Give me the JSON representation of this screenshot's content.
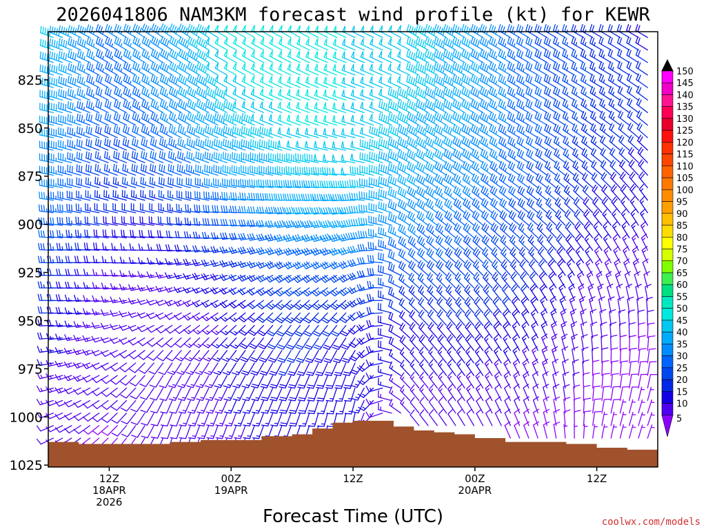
{
  "chart_data": {
    "type": "wind-barb-profile",
    "title": "2026041806 NAM3KM forecast wind profile (kt) for KEWR",
    "xlabel": "Forecast Time (UTC)",
    "ylabel": "",
    "credit": "coolwx.com/models",
    "y_ticks": [
      "825",
      "850",
      "875",
      "900",
      "925",
      "950",
      "975",
      "1000",
      "1025"
    ],
    "y_range_hpa": [
      800,
      1026
    ],
    "x_ticks": [
      {
        "label": "12Z",
        "sub": "18APR",
        "sub2": "2026",
        "hour": 6
      },
      {
        "label": "00Z",
        "sub": "19APR",
        "sub2": "",
        "hour": 18
      },
      {
        "label": "12Z",
        "sub": "",
        "sub2": "",
        "hour": 30
      },
      {
        "label": "00Z",
        "sub": "20APR",
        "sub2": "",
        "hour": 42
      },
      {
        "label": "12Z",
        "sub": "",
        "sub2": "",
        "hour": 54
      }
    ],
    "x_range_hours": [
      0,
      60
    ],
    "colorbar": {
      "labels": [
        "150",
        "145",
        "140",
        "135",
        "130",
        "125",
        "120",
        "115",
        "110",
        "105",
        "100",
        "95",
        "90",
        "85",
        "80",
        "75",
        "70",
        "65",
        "60",
        "55",
        "50",
        "45",
        "40",
        "35",
        "30",
        "25",
        "20",
        "15",
        "10",
        "5"
      ],
      "colors": [
        "#ff00ff",
        "#f000c8",
        "#ff1493",
        "#ff0055",
        "#e8002a",
        "#ff1010",
        "#ff3200",
        "#ff4600",
        "#ff6400",
        "#ff7800",
        "#ff8c00",
        "#ffa000",
        "#ffbe00",
        "#ffdc00",
        "#ffff00",
        "#d4ff00",
        "#80ff00",
        "#3cf050",
        "#00e080",
        "#00e8c0",
        "#00e8e0",
        "#00c8f0",
        "#00aaff",
        "#008cff",
        "#0064ff",
        "#0046f0",
        "#0028e6",
        "#1400e6",
        "#5000f0",
        "#8c00ff"
      ],
      "top_arrow_color": "#000000"
    },
    "terrain": {
      "color": "#a0522d",
      "hours": [
        0,
        3,
        6,
        9,
        12,
        15,
        18,
        21,
        24,
        26,
        28,
        30,
        32,
        34,
        36,
        38,
        40,
        42,
        45,
        48,
        51,
        54,
        57,
        60
      ],
      "pressure": [
        1013,
        1014,
        1014,
        1014,
        1013,
        1012,
        1012,
        1010,
        1009,
        1006,
        1003,
        1002,
        1002,
        1005,
        1007,
        1008,
        1009,
        1011,
        1013,
        1013,
        1014,
        1016,
        1017,
        1015
      ]
    },
    "wind_profile": {
      "levels_hpa": [
        1025,
        1000,
        975,
        950,
        925,
        900,
        875,
        850,
        825,
        800
      ],
      "hours": [
        0,
        6,
        12,
        18,
        24,
        30,
        36,
        42,
        48,
        54,
        60
      ],
      "speed_kt": [
        [
          10,
          12,
          15,
          20,
          25,
          35,
          40,
          42,
          45,
          48
        ],
        [
          8,
          10,
          12,
          12,
          15,
          20,
          25,
          30,
          32,
          35
        ],
        [
          10,
          12,
          12,
          10,
          15,
          20,
          30,
          35,
          38,
          40
        ],
        [
          12,
          14,
          16,
          15,
          20,
          30,
          40,
          45,
          50,
          52
        ],
        [
          15,
          18,
          20,
          22,
          28,
          38,
          45,
          50,
          52,
          52
        ],
        [
          12,
          15,
          18,
          20,
          30,
          42,
          48,
          50,
          50,
          50
        ],
        [
          10,
          12,
          16,
          20,
          30,
          38,
          42,
          45,
          48,
          48
        ],
        [
          8,
          12,
          16,
          22,
          28,
          32,
          38,
          40,
          42,
          40
        ],
        [
          6,
          10,
          14,
          18,
          22,
          28,
          30,
          32,
          32,
          30
        ],
        [
          5,
          8,
          10,
          12,
          14,
          18,
          22,
          24,
          25,
          22
        ],
        [
          5,
          6,
          8,
          10,
          12,
          15,
          18,
          20,
          20,
          18
        ]
      ],
      "dir_deg": [
        [
          240,
          250,
          260,
          270,
          270,
          275,
          280,
          280,
          285,
          290
        ],
        [
          220,
          230,
          240,
          260,
          270,
          280,
          290,
          295,
          300,
          300
        ],
        [
          200,
          200,
          210,
          240,
          260,
          280,
          290,
          300,
          300,
          305
        ],
        [
          200,
          200,
          210,
          230,
          250,
          270,
          285,
          295,
          300,
          300
        ],
        [
          200,
          200,
          205,
          220,
          240,
          260,
          280,
          290,
          295,
          300
        ],
        [
          190,
          190,
          200,
          220,
          240,
          260,
          275,
          285,
          290,
          295
        ],
        [
          320,
          320,
          320,
          315,
          310,
          305,
          300,
          300,
          295,
          300
        ],
        [
          330,
          330,
          325,
          320,
          315,
          310,
          305,
          300,
          300,
          300
        ],
        [
          340,
          340,
          335,
          330,
          320,
          310,
          305,
          300,
          300,
          300
        ],
        [
          10,
          10,
          360,
          350,
          330,
          320,
          310,
          305,
          300,
          300
        ],
        [
          20,
          20,
          10,
          360,
          340,
          330,
          320,
          310,
          305,
          300
        ]
      ]
    }
  }
}
